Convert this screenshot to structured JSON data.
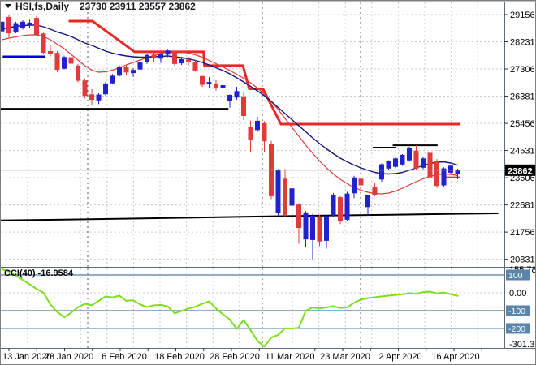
{
  "window": {
    "symbol_label": "HSI,fs,Daily",
    "ohlc_label": "23730 23911 23557 23862"
  },
  "cci_panel": {
    "label": "CCI(40) -16.9584",
    "max_label": "155.7882",
    "zero_label": "0.00",
    "min_label": "-301.377",
    "level_tags": [
      "100",
      "-100",
      "-200"
    ],
    "levels": [
      100,
      -100,
      -200
    ]
  },
  "price_axis": {
    "ticks": [
      29156,
      28231,
      27306,
      26381,
      25456,
      24531,
      23606,
      22681,
      21756,
      20831
    ],
    "current_price": 23862
  },
  "date_axis": {
    "labels": [
      {
        "text": "13 Jan 2020",
        "i": 0
      },
      {
        "text": "23 Jan 2020",
        "i": 8
      },
      {
        "text": "6 Feb 2020",
        "i": 16
      },
      {
        "text": "18 Feb 2020",
        "i": 24
      },
      {
        "text": "28 Feb 2020",
        "i": 32
      },
      {
        "text": "11 Mar 2020",
        "i": 40
      },
      {
        "text": "23 Mar 2020",
        "i": 48
      },
      {
        "text": "2 Apr 2020",
        "i": 56
      },
      {
        "text": "16 Apr 2020",
        "i": 64
      }
    ]
  },
  "chart_data": {
    "type": "candlestick",
    "title": "HSI,fs,Daily",
    "symbol": "HSI",
    "timeframe": "Daily",
    "last_ohlc": {
      "open": 23730,
      "high": 23911,
      "low": 23557,
      "close": 23862
    },
    "price_range_visible": [
      20572,
      29294
    ],
    "candles": [
      [
        28600,
        28960,
        28530,
        28900
      ],
      [
        29060,
        29156,
        28380,
        28530
      ],
      [
        28560,
        28910,
        28520,
        28850
      ],
      [
        28700,
        28960,
        28650,
        28900
      ],
      [
        28820,
        28980,
        28700,
        28870
      ],
      [
        29030,
        29110,
        28420,
        28480
      ],
      [
        28500,
        28540,
        27810,
        27870
      ],
      [
        27900,
        28120,
        27730,
        27820
      ],
      [
        27840,
        27920,
        27200,
        27290
      ],
      [
        27330,
        27760,
        27290,
        27700
      ],
      [
        27690,
        27780,
        27440,
        27500
      ],
      [
        27410,
        27480,
        26850,
        26920
      ],
      [
        26900,
        26980,
        26310,
        26410
      ],
      [
        26430,
        26620,
        26060,
        26270
      ],
      [
        26250,
        26480,
        26110,
        26420
      ],
      [
        26460,
        26870,
        26390,
        26800
      ],
      [
        26830,
        27130,
        26780,
        27060
      ],
      [
        27090,
        27430,
        27040,
        27370
      ],
      [
        27350,
        27460,
        27110,
        27200
      ],
      [
        27180,
        27330,
        27040,
        27260
      ],
      [
        27300,
        27560,
        27250,
        27510
      ],
      [
        27540,
        27810,
        27480,
        27770
      ],
      [
        27780,
        27900,
        27550,
        27690
      ],
      [
        27670,
        27830,
        27510,
        27800
      ],
      [
        27810,
        27960,
        27710,
        27920
      ],
      [
        27870,
        27910,
        27410,
        27490
      ],
      [
        27510,
        27690,
        27440,
        27630
      ],
      [
        27610,
        27720,
        27420,
        27570
      ],
      [
        27520,
        27590,
        27210,
        27270
      ],
      [
        27050,
        27080,
        26700,
        26780
      ],
      [
        26820,
        27030,
        26660,
        26850
      ],
      [
        26800,
        26920,
        26570,
        26660
      ],
      [
        26680,
        26900,
        26600,
        26740
      ],
      [
        26230,
        26440,
        25990,
        26410
      ],
      [
        26350,
        26700,
        26260,
        26540
      ],
      [
        26360,
        26510,
        25560,
        25720
      ],
      [
        25310,
        25550,
        24480,
        24900
      ],
      [
        25240,
        25680,
        25160,
        25530
      ],
      [
        25450,
        25530,
        24480,
        24860
      ],
      [
        24740,
        24860,
        22880,
        22990
      ],
      [
        22420,
        23900,
        22330,
        23860
      ],
      [
        23560,
        23900,
        22280,
        22330
      ],
      [
        22670,
        23600,
        22600,
        23230
      ],
      [
        22680,
        22740,
        21360,
        21910
      ],
      [
        21520,
        22470,
        21260,
        22410
      ],
      [
        21500,
        22380,
        20831,
        22300
      ],
      [
        22280,
        22340,
        21280,
        21450
      ],
      [
        21470,
        22350,
        21190,
        22280
      ],
      [
        22330,
        23080,
        22260,
        23010
      ],
      [
        22930,
        22980,
        22030,
        22130
      ],
      [
        22190,
        23130,
        22140,
        23050
      ],
      [
        23090,
        23670,
        22910,
        23600
      ],
      [
        23560,
        23730,
        23240,
        23360
      ],
      [
        22620,
        23030,
        22310,
        23000
      ],
      [
        23280,
        23430,
        22970,
        23030
      ],
      [
        23560,
        24090,
        23470,
        24050
      ],
      [
        23930,
        24200,
        23860,
        24160
      ],
      [
        23990,
        24290,
        23930,
        24250
      ],
      [
        24070,
        24410,
        24010,
        24370
      ],
      [
        24210,
        24660,
        24150,
        24610
      ],
      [
        24510,
        24710,
        23870,
        23930
      ],
      [
        23960,
        24300,
        23890,
        24250
      ],
      [
        24440,
        24520,
        23560,
        23630
      ],
      [
        24150,
        24240,
        23260,
        23340
      ],
      [
        23360,
        23960,
        23290,
        23910
      ],
      [
        23790,
        24050,
        23720,
        24000
      ],
      [
        23730,
        23911,
        23557,
        23862
      ]
    ],
    "ma_slow": [
      28659,
      28714,
      28756,
      28783,
      28797,
      28797,
      28742,
      28659,
      28563,
      28494,
      28411,
      28300,
      28190,
      28107,
      28011,
      27914,
      27845,
      27790,
      27748,
      27721,
      27707,
      27707,
      27721,
      27734,
      27748,
      27721,
      27693,
      27652,
      27597,
      27528,
      27445,
      27348,
      27252,
      27141,
      27003,
      26865,
      26713,
      26562,
      26396,
      26203,
      25996,
      25789,
      25582,
      25375,
      25168,
      24961,
      24768,
      24588,
      24423,
      24271,
      24147,
      24036,
      23940,
      23857,
      23788,
      23746,
      23733,
      23746,
      23788,
      23857,
      23940,
      24023,
      24092,
      24133,
      24147,
      24106,
      24037
    ],
    "ma_fast": [
      28300,
      28356,
      28397,
      28438,
      28466,
      28466,
      28411,
      28300,
      28148,
      27997,
      27804,
      27610,
      27417,
      27265,
      27196,
      27210,
      27265,
      27348,
      27445,
      27528,
      27610,
      27693,
      27762,
      27831,
      27886,
      27900,
      27886,
      27845,
      27790,
      27707,
      27597,
      27486,
      27376,
      27252,
      27127,
      26989,
      26838,
      26658,
      26451,
      26203,
      25927,
      25624,
      25320,
      25016,
      24713,
      24437,
      24174,
      23940,
      23733,
      23553,
      23401,
      23277,
      23181,
      23112,
      23070,
      23056,
      23084,
      23153,
      23250,
      23360,
      23470,
      23567,
      23650,
      23705,
      23733,
      23719,
      23677
    ],
    "step_line": [
      [
        8.8,
        28935
      ],
      [
        12.1,
        28935
      ],
      [
        18.2,
        27890
      ],
      [
        28.2,
        27890
      ],
      [
        28.3,
        27420
      ],
      [
        33.9,
        27420
      ],
      [
        34.8,
        26630
      ],
      [
        36.8,
        26630
      ],
      [
        39.4,
        25430
      ],
      [
        65.2,
        25430
      ]
    ],
    "trend_line_black": [
      [
        -1.2,
        22150
      ],
      [
        8,
        22180
      ],
      [
        17.6,
        22215
      ],
      [
        27,
        22250
      ],
      [
        36.5,
        22285
      ],
      [
        44.7,
        22315
      ],
      [
        55.3,
        22345
      ],
      [
        63.5,
        22375
      ],
      [
        70.8,
        22395
      ]
    ],
    "support_line": {
      "price": 25950,
      "i1": -1.2,
      "i2": 31.8
    },
    "blue_line": {
      "price": 27720,
      "i1": -0.9,
      "i2": 5.3
    },
    "resistance_lines": [
      {
        "price": 24630,
        "i1": 52.7,
        "i2": 56.1
      },
      {
        "price": 24710,
        "i1": 55.6,
        "i2": 62.1
      }
    ],
    "red_segment": {
      "price": 23620,
      "i1": 63.3,
      "i2": 65.4
    },
    "cci_values": [
      155.8,
      120,
      98,
      72,
      48,
      22,
      0,
      -65,
      -108,
      -137,
      -112,
      -80,
      -62,
      -70,
      -45,
      -20,
      -26,
      -16,
      -45,
      -42,
      -65,
      -80,
      -70,
      -68,
      -76,
      -115,
      -102,
      -88,
      -78,
      -62,
      -48,
      -88,
      -120,
      -150,
      -203,
      -152,
      -210,
      -270,
      -301.4,
      -251,
      -236,
      -199,
      -200,
      -196,
      -100,
      -82,
      -88,
      -82,
      -75,
      -85,
      -82,
      -56,
      -38,
      -30,
      -25,
      -20,
      -16,
      -12,
      -8,
      -2,
      -6,
      4,
      7,
      -3,
      2,
      -8,
      -16.9584
    ],
    "cci_current": -16.9584,
    "cci_range_visible": [
      155.7882,
      -301.377
    ]
  },
  "colors": {
    "bull": "#2121cd",
    "bear": "#e03a3a",
    "ma_slow": "#15157e",
    "ma_fast": "#e03a3a",
    "step_line": "#e82727",
    "cci_line": "#7fdd20",
    "grid": "#c4ccd6",
    "separator": "#555555",
    "level_blue": "#4a7dab",
    "tag_bg": "#5a85ad",
    "price_line": "#999999",
    "black_line": "#000000",
    "blue_line": "#0000dd",
    "price_tag_bg": "#000000"
  }
}
